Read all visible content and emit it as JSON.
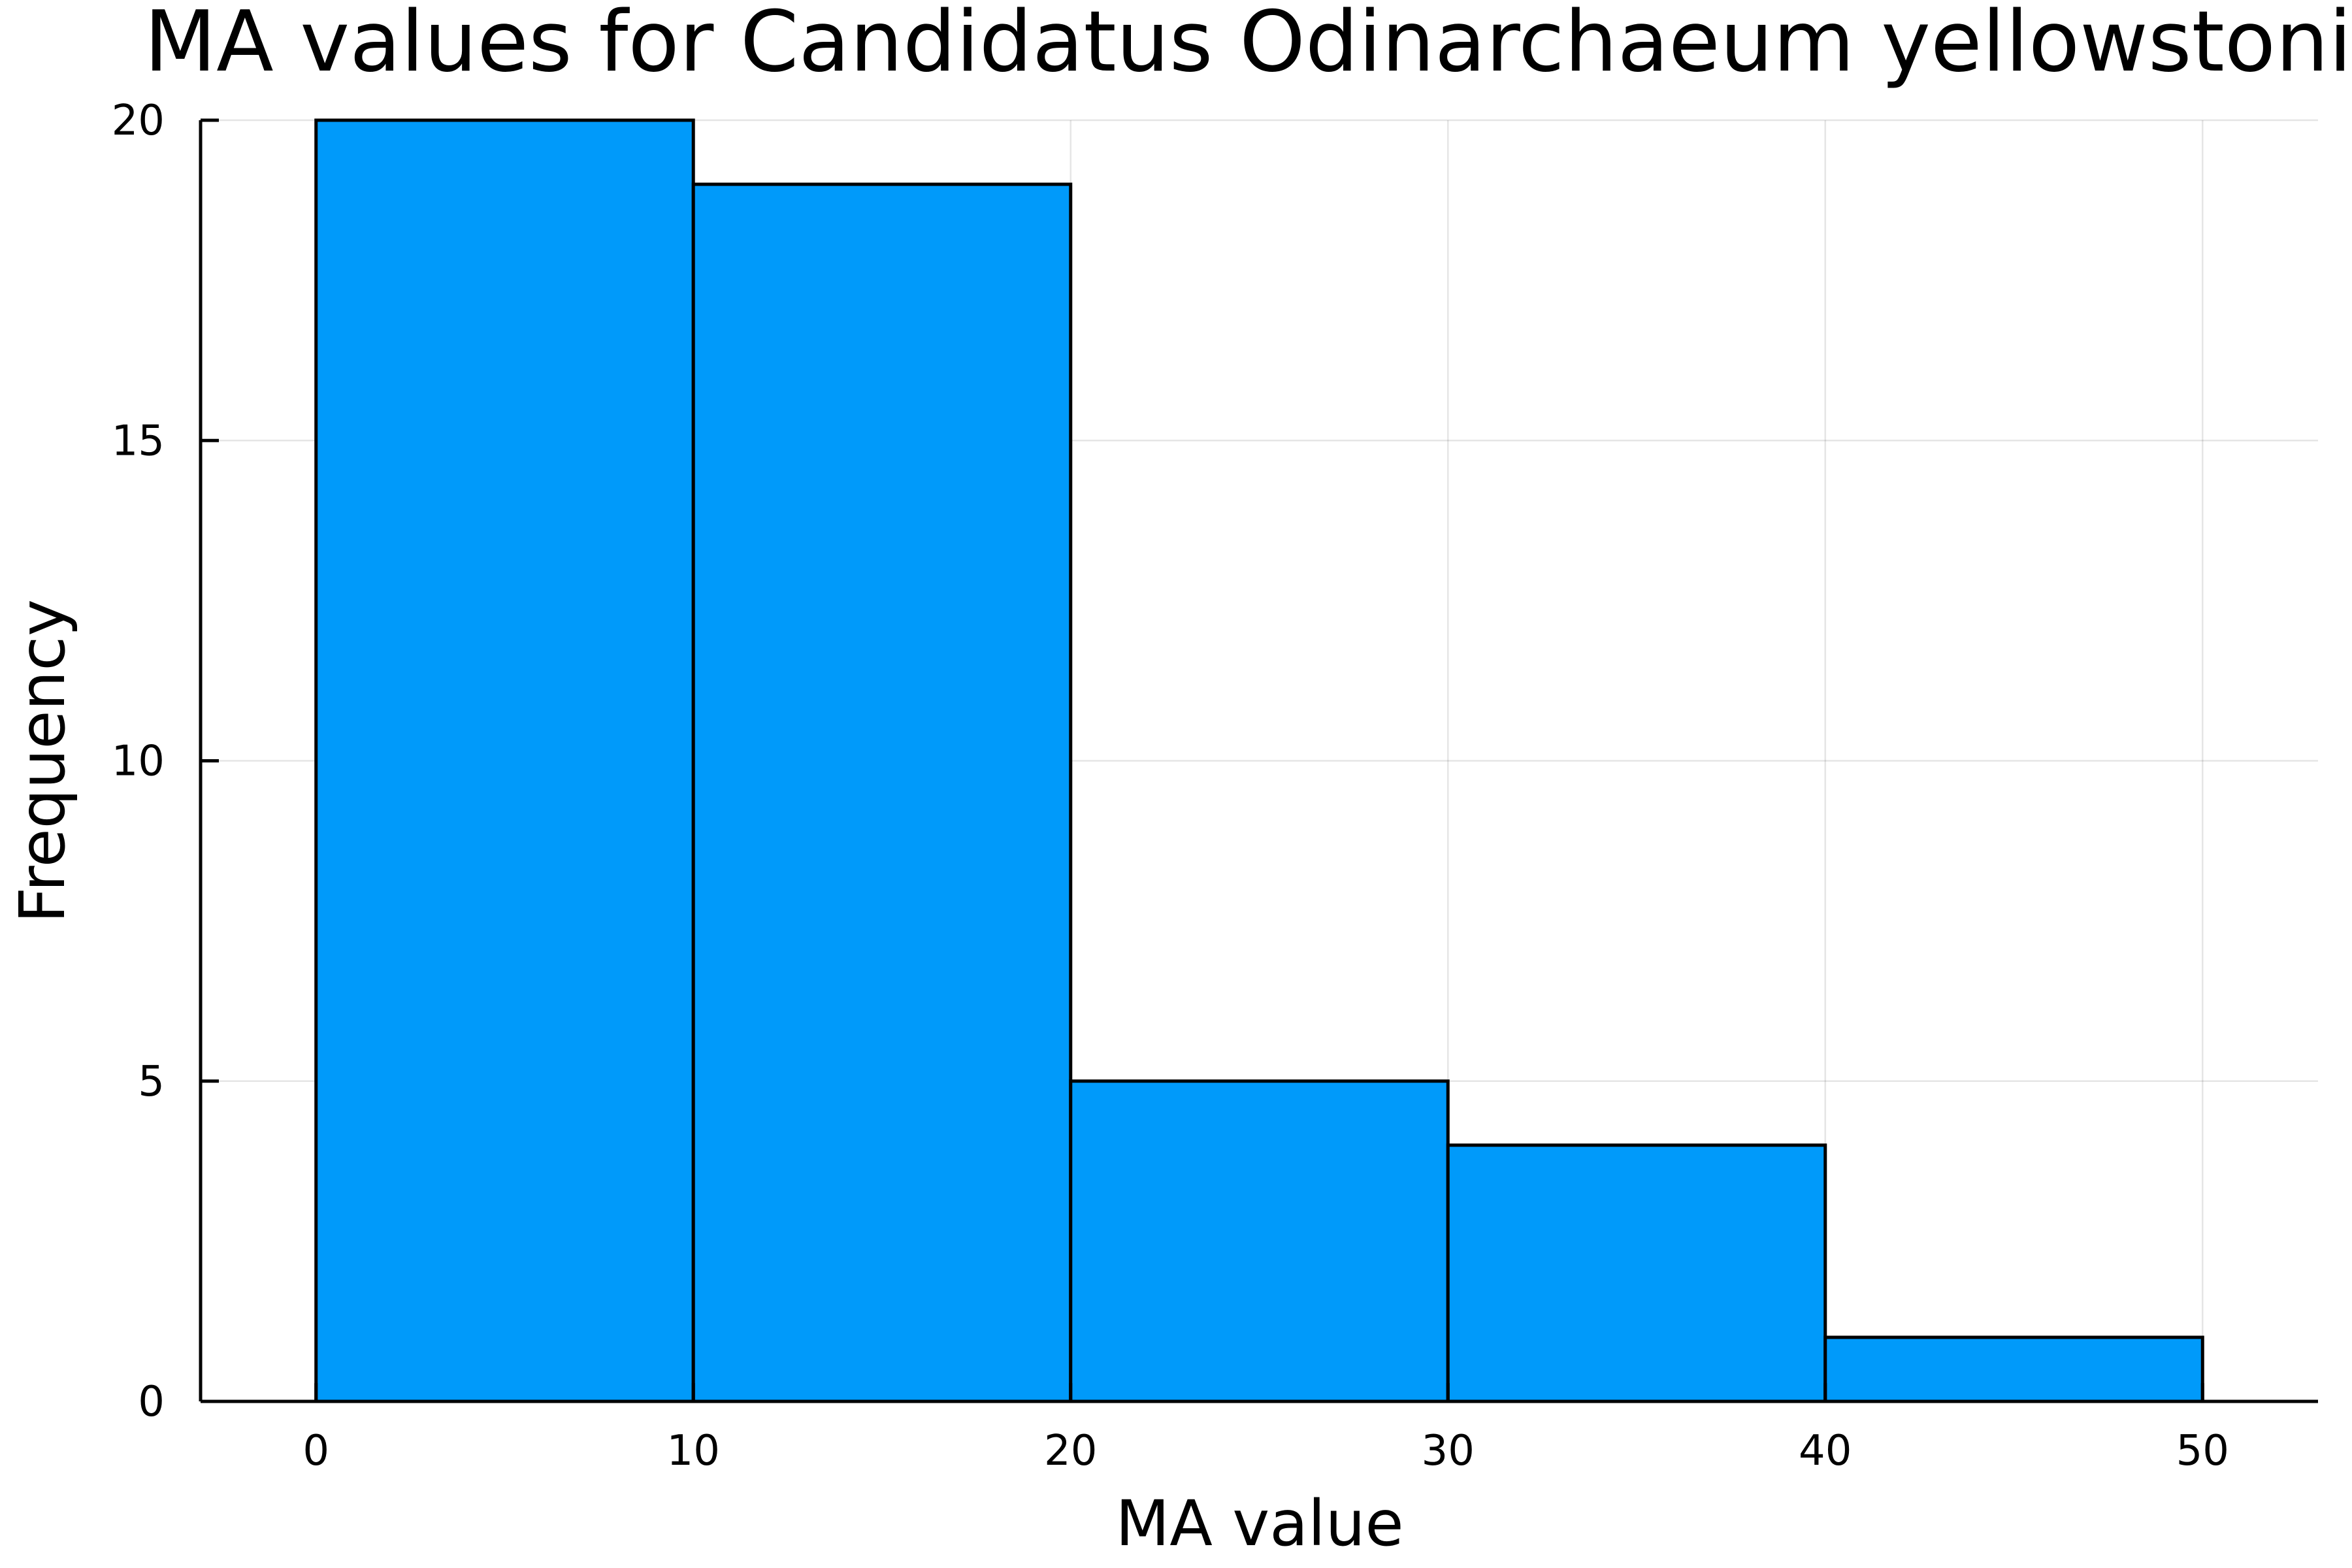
{
  "chart_data": {
    "type": "bar",
    "title": "MA values for Candidatus Odinarchaeum yellowstonii",
    "xlabel": "MA value",
    "ylabel": "Frequency",
    "bins": [
      {
        "start": 0,
        "end": 10,
        "value": 20
      },
      {
        "start": 10,
        "end": 20,
        "value": 19
      },
      {
        "start": 20,
        "end": 30,
        "value": 5
      },
      {
        "start": 30,
        "end": 40,
        "value": 4
      },
      {
        "start": 40,
        "end": 50,
        "value": 1
      }
    ],
    "xticks": [
      "0",
      "10",
      "20",
      "30",
      "40",
      "50"
    ],
    "yticks": [
      "0",
      "5",
      "10",
      "15",
      "20"
    ],
    "xlim": [
      -3.06,
      53.06
    ],
    "ylim": [
      0,
      20
    ],
    "grid": true,
    "legend": "none",
    "bar_color": "#009AFA",
    "edge_color": "#000000"
  }
}
